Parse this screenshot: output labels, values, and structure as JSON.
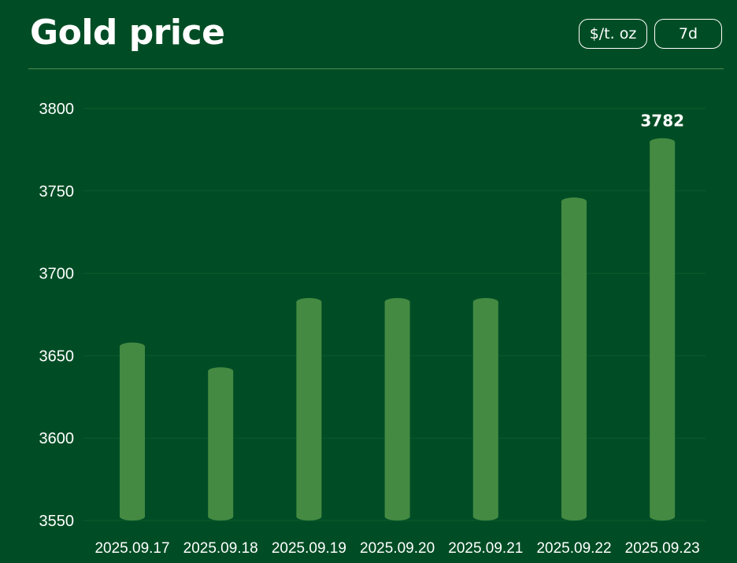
{
  "header": {
    "title": "Gold price",
    "unit_button": "$/t. oz",
    "range_button": "7d"
  },
  "colors": {
    "background": "#004d25",
    "bar": "#448a42",
    "text": "#ffffff",
    "grid": "#0b5a2c"
  },
  "chart_data": {
    "type": "bar",
    "title": "Gold price",
    "xlabel": "",
    "ylabel": "",
    "categories": [
      "2025.09.17",
      "2025.09.18",
      "2025.09.19",
      "2025.09.20",
      "2025.09.21",
      "2025.09.22",
      "2025.09.23"
    ],
    "values": [
      3658,
      3643,
      3685,
      3685,
      3685,
      3746,
      3782
    ],
    "data_labels": [
      null,
      null,
      null,
      null,
      null,
      null,
      "3782"
    ],
    "y_ticks": [
      3550,
      3600,
      3650,
      3700,
      3750,
      3800
    ],
    "ylim": [
      3550,
      3800
    ],
    "grid": true,
    "legend": "none"
  }
}
